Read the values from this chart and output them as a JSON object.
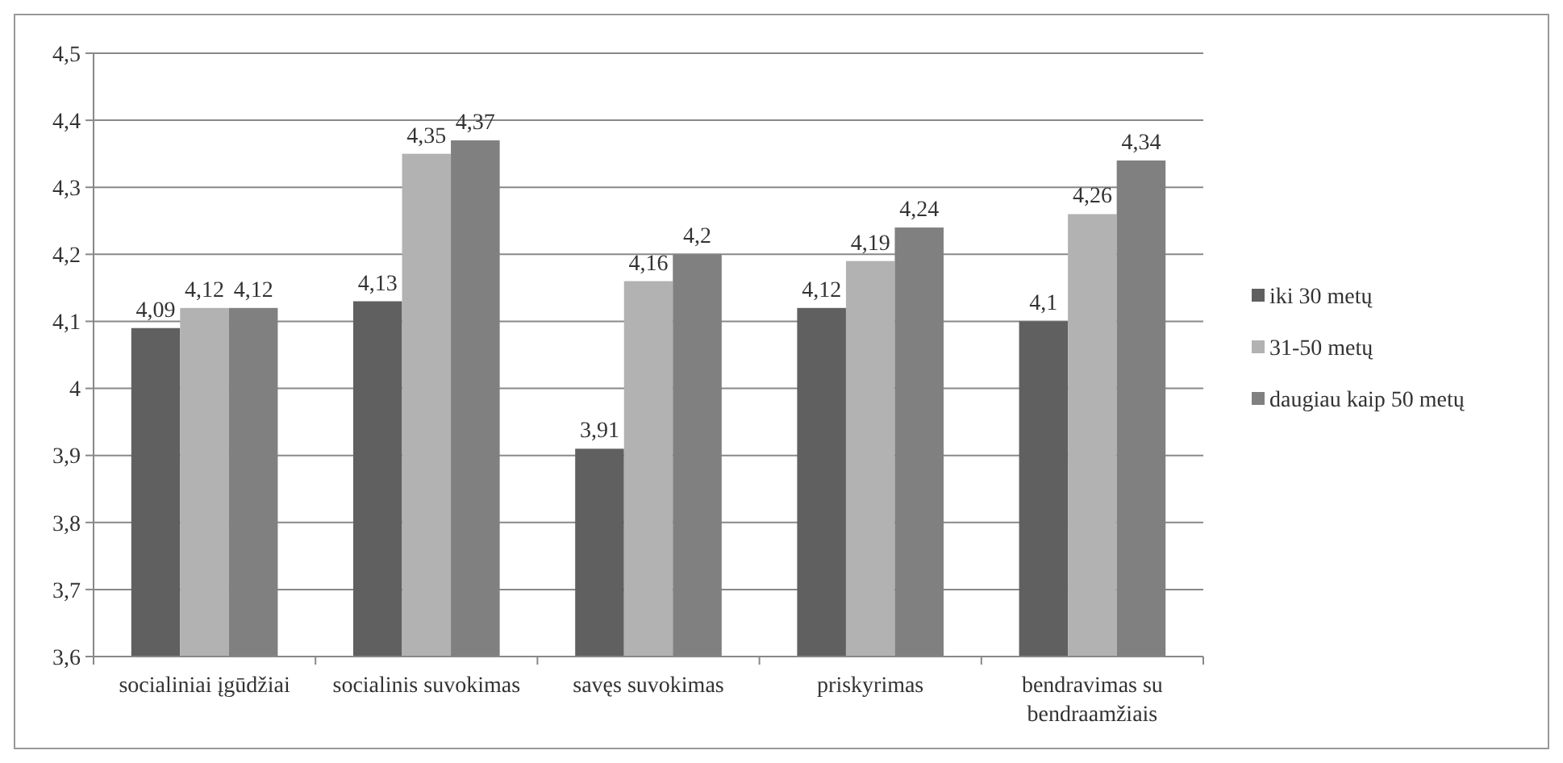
{
  "chart_data": {
    "type": "bar",
    "categories": [
      "socialiniai įgūdžiai",
      "socialinis suvokimas",
      "savęs suvokimas",
      "priskyrimas",
      "bendravimas su bendraamžiais"
    ],
    "series": [
      {
        "name": "iki 30 metų",
        "color": "#606060",
        "values": [
          4.09,
          4.13,
          3.91,
          4.12,
          4.1
        ],
        "value_labels": [
          "4,09",
          "4,13",
          "3,91",
          "4,12",
          "4,1"
        ]
      },
      {
        "name": "31-50 metų",
        "color": "#b2b2b2",
        "values": [
          4.12,
          4.35,
          4.16,
          4.19,
          4.26
        ],
        "value_labels": [
          "4,12",
          "4,35",
          "4,16",
          "4,19",
          "4,26"
        ]
      },
      {
        "name": "daugiau kaip 50 metų",
        "color": "#808080",
        "values": [
          4.12,
          4.37,
          4.2,
          4.24,
          4.34
        ],
        "value_labels": [
          "4,12",
          "4,37",
          "4,2",
          "4,24",
          "4,34"
        ]
      }
    ],
    "ylim": [
      3.6,
      4.5
    ],
    "yticks": [
      {
        "value": 3.6,
        "label": "3,6"
      },
      {
        "value": 3.7,
        "label": "3,7"
      },
      {
        "value": 3.8,
        "label": "3,8"
      },
      {
        "value": 3.9,
        "label": "3,9"
      },
      4,
      {
        "value": 4.1,
        "label": "4,1"
      },
      {
        "value": 4.2,
        "label": "4,2"
      },
      {
        "value": 4.3,
        "label": "4,3"
      },
      {
        "value": 4.4,
        "label": "4,4"
      },
      {
        "value": 4.5,
        "label": "4,5"
      }
    ],
    "grid": "y",
    "legend": "right"
  }
}
